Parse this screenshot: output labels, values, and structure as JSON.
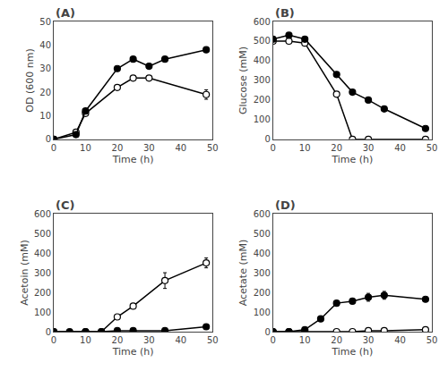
{
  "chart_data": [
    {
      "type": "line",
      "annotations": [
        "(A)"
      ],
      "xlabel": "Time (h)",
      "ylabel": "OD (600 nm)",
      "xlim": [
        0,
        50
      ],
      "xticks": [
        0,
        10,
        20,
        30,
        40,
        50
      ],
      "ylim": [
        0,
        50
      ],
      "yticks": [
        0,
        10,
        20,
        30,
        40,
        50
      ],
      "grid": false,
      "series": [
        {
          "color": "#000000",
          "marker": "open",
          "line_style": "solid",
          "x": [
            0,
            7,
            10,
            20,
            25,
            30,
            48
          ],
          "values": [
            0,
            3,
            11,
            22,
            26,
            26,
            19
          ],
          "errors": [
            0,
            0,
            0,
            0,
            0,
            1,
            2
          ]
        },
        {
          "color": "#000000",
          "marker": "filled",
          "line_style": "solid",
          "x": [
            0,
            7,
            10,
            20,
            25,
            30,
            35,
            48
          ],
          "values": [
            0,
            2,
            12,
            30,
            34,
            31,
            34,
            38
          ],
          "errors": [
            0,
            0,
            0,
            0,
            1,
            1,
            0,
            1
          ]
        }
      ]
    },
    {
      "type": "line",
      "annotations": [
        "(B)"
      ],
      "xlabel": "Time (h)",
      "ylabel": "Glucose (mM)",
      "xlim": [
        0,
        50
      ],
      "xticks": [
        0,
        10,
        20,
        30,
        40,
        50
      ],
      "ylim": [
        0,
        600
      ],
      "yticks": [
        0,
        100,
        200,
        300,
        400,
        500,
        600
      ],
      "grid": false,
      "series": [
        {
          "color": "#000000",
          "marker": "open",
          "line_style": "solid",
          "x": [
            0,
            5,
            10,
            20,
            25,
            30,
            48
          ],
          "values": [
            500,
            500,
            490,
            230,
            0,
            0,
            0
          ],
          "errors": [
            10,
            10,
            5,
            10,
            0,
            0,
            0
          ]
        },
        {
          "color": "#000000",
          "marker": "filled",
          "line_style": "solid",
          "x": [
            0,
            5,
            10,
            20,
            25,
            30,
            35,
            48
          ],
          "values": [
            510,
            530,
            510,
            330,
            240,
            200,
            155,
            55
          ],
          "errors": [
            10,
            10,
            5,
            10,
            0,
            0,
            5,
            5
          ]
        }
      ]
    },
    {
      "type": "line",
      "annotations": [
        "(C)"
      ],
      "xlabel": "Time (h)",
      "ylabel": "Acetoin (mM)",
      "xlim": [
        0,
        50
      ],
      "xticks": [
        0,
        10,
        20,
        30,
        40,
        50
      ],
      "ylim": [
        0,
        600
      ],
      "yticks": [
        0,
        100,
        200,
        300,
        400,
        500,
        600
      ],
      "grid": false,
      "series": [
        {
          "color": "#000000",
          "marker": "open",
          "line_style": "solid",
          "x": [
            0,
            10,
            15,
            20,
            25,
            35,
            48
          ],
          "values": [
            0,
            0,
            0,
            75,
            130,
            260,
            350
          ],
          "errors": [
            0,
            0,
            0,
            5,
            5,
            40,
            25
          ]
        },
        {
          "color": "#000000",
          "marker": "filled",
          "line_style": "solid",
          "x": [
            0,
            5,
            10,
            15,
            20,
            25,
            35,
            48
          ],
          "values": [
            0,
            0,
            0,
            0,
            5,
            5,
            5,
            25
          ],
          "errors": [
            0,
            0,
            0,
            0,
            0,
            0,
            0,
            3
          ]
        }
      ]
    },
    {
      "type": "line",
      "annotations": [
        "(D)"
      ],
      "xlabel": "Time (h)",
      "ylabel": "Acetate (mM)",
      "xlim": [
        0,
        50
      ],
      "xticks": [
        0,
        10,
        20,
        30,
        40,
        50
      ],
      "ylim": [
        0,
        600
      ],
      "yticks": [
        0,
        100,
        200,
        300,
        400,
        500,
        600
      ],
      "grid": false,
      "series": [
        {
          "color": "#000000",
          "marker": "open",
          "line_style": "solid",
          "x": [
            0,
            5,
            10,
            20,
            25,
            30,
            35,
            48
          ],
          "values": [
            0,
            0,
            0,
            0,
            0,
            5,
            5,
            10
          ],
          "errors": [
            0,
            0,
            0,
            0,
            0,
            0,
            0,
            3
          ]
        },
        {
          "color": "#000000",
          "marker": "filled",
          "line_style": "solid",
          "x": [
            0,
            5,
            10,
            15,
            20,
            25,
            30,
            35,
            48
          ],
          "values": [
            0,
            0,
            10,
            65,
            145,
            155,
            175,
            185,
            165
          ],
          "errors": [
            0,
            0,
            5,
            5,
            10,
            10,
            20,
            20,
            10
          ]
        }
      ]
    }
  ]
}
